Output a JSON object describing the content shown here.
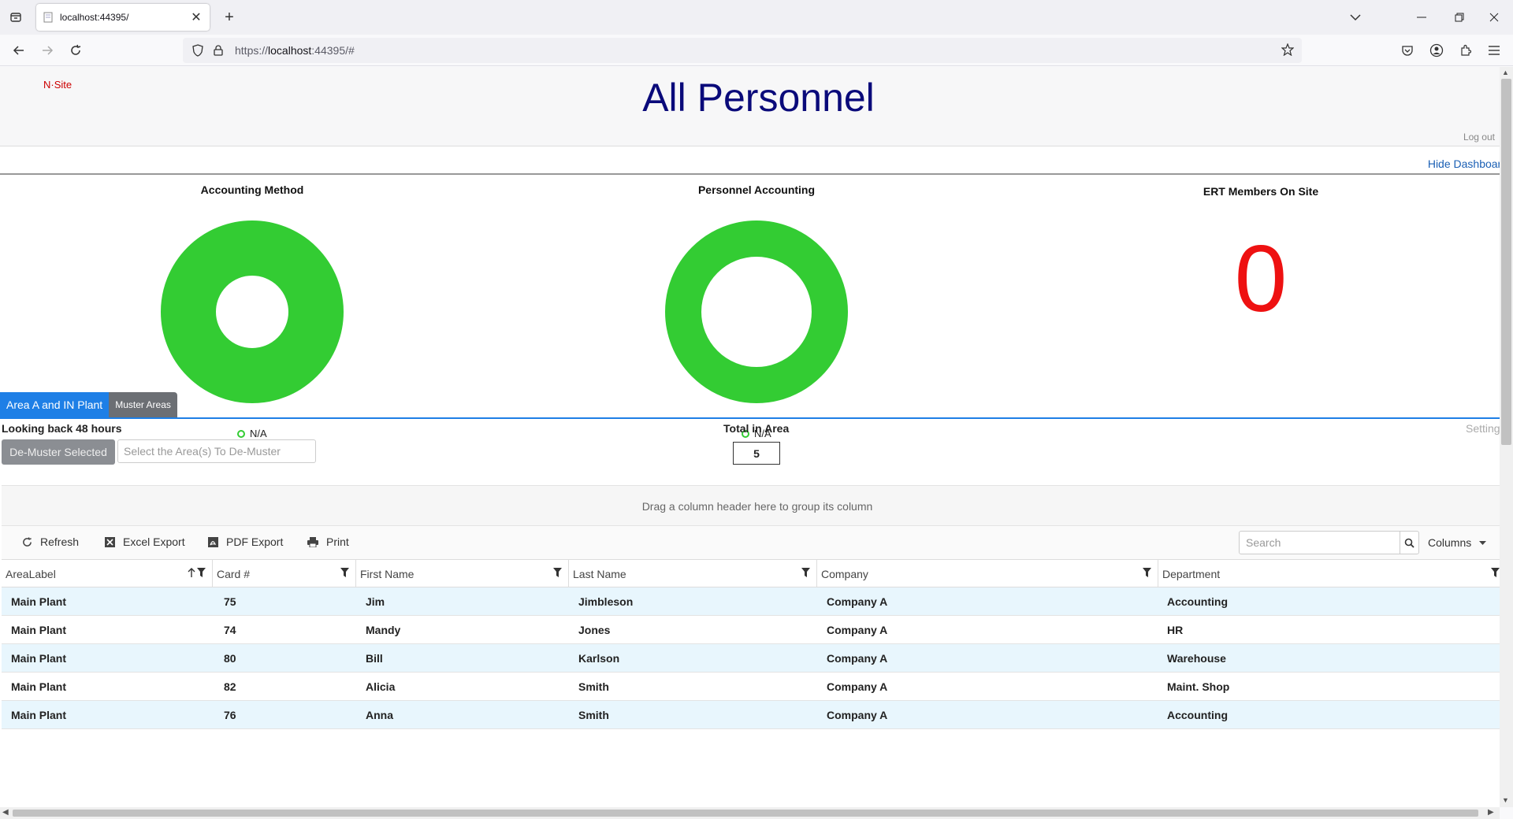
{
  "browser": {
    "tab_title": "localhost:44395/",
    "url_prefix": "https://",
    "url_host": "localhost",
    "url_rest": ":44395/#"
  },
  "header": {
    "brand": "N·Site",
    "title": "All Personnel",
    "logout": "Log out"
  },
  "dashboard": {
    "hide_label": "Hide Dashboard",
    "widgets": [
      {
        "title": "Accounting Method",
        "legend": "N/A",
        "color": "#33cc33"
      },
      {
        "title": "Personnel Accounting",
        "legend": "N/A",
        "color": "#33cc33"
      }
    ],
    "ert": {
      "title": "ERT Members On Site",
      "count": "0",
      "color": "#ee1111"
    }
  },
  "tabs": {
    "active": "Area A and IN Plant",
    "inactive": "Muster Areas"
  },
  "panel": {
    "lookback": "Looking back 48 hours",
    "demuster_button": "De-Muster Selected",
    "area_placeholder": "Select the Area(s) To De-Muster",
    "total_label": "Total in Area",
    "total_value": "5",
    "settings": "Settings"
  },
  "grid": {
    "group_hint": "Drag a column header here to group its column",
    "toolbar": {
      "refresh": "Refresh",
      "excel": "Excel Export",
      "pdf": "PDF Export",
      "print": "Print",
      "search_placeholder": "Search",
      "columns": "Columns"
    },
    "columns": [
      "AreaLabel",
      "Card #",
      "First Name",
      "Last Name",
      "Company",
      "Department"
    ],
    "rows": [
      [
        "Main Plant",
        "75",
        "Jim",
        "Jimbleson",
        "Company A",
        "Accounting"
      ],
      [
        "Main Plant",
        "74",
        "Mandy",
        "Jones",
        "Company A",
        "HR"
      ],
      [
        "Main Plant",
        "80",
        "Bill",
        "Karlson",
        "Company A",
        "Warehouse"
      ],
      [
        "Main Plant",
        "82",
        "Alicia",
        "Smith",
        "Company A",
        "Maint. Shop"
      ],
      [
        "Main Plant",
        "76",
        "Anna",
        "Smith",
        "Company A",
        "Accounting"
      ]
    ]
  }
}
